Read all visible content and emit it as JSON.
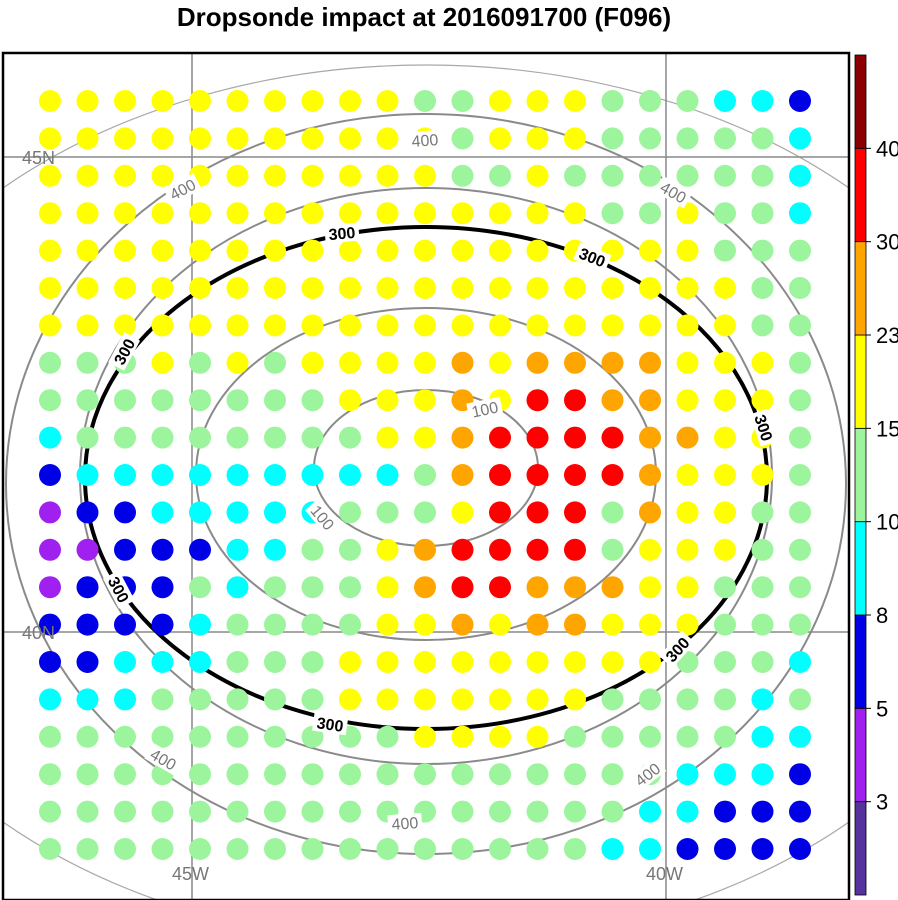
{
  "chart_data": {
    "type": "scatter",
    "title": "Dropsonde impact at 2016091700 (F096)",
    "map": {
      "lat_labels": [
        "45N",
        "40N"
      ],
      "lon_labels": [
        "45W",
        "40W"
      ]
    },
    "grid": {
      "columns": 21,
      "rows": 21,
      "values": [
        [
          15,
          15,
          15,
          15,
          15,
          15,
          15,
          15,
          15,
          15,
          10,
          10,
          15,
          15,
          15,
          10,
          10,
          10,
          8,
          8,
          5
        ],
        [
          15,
          15,
          15,
          15,
          15,
          15,
          15,
          15,
          15,
          15,
          15,
          10,
          15,
          15,
          15,
          10,
          10,
          10,
          10,
          10,
          8
        ],
        [
          15,
          15,
          15,
          15,
          15,
          15,
          15,
          15,
          15,
          15,
          15,
          10,
          10,
          15,
          10,
          10,
          10,
          10,
          10,
          10,
          8
        ],
        [
          15,
          15,
          15,
          15,
          15,
          15,
          15,
          15,
          15,
          15,
          15,
          15,
          15,
          15,
          15,
          10,
          10,
          15,
          10,
          10,
          8
        ],
        [
          15,
          15,
          15,
          15,
          15,
          15,
          15,
          15,
          15,
          15,
          15,
          15,
          15,
          15,
          15,
          15,
          15,
          15,
          10,
          10,
          10
        ],
        [
          15,
          15,
          15,
          15,
          15,
          15,
          15,
          15,
          15,
          15,
          15,
          15,
          15,
          15,
          15,
          15,
          15,
          15,
          15,
          10,
          10
        ],
        [
          15,
          15,
          15,
          15,
          15,
          15,
          15,
          15,
          15,
          15,
          15,
          15,
          15,
          15,
          15,
          15,
          15,
          15,
          15,
          10,
          10
        ],
        [
          10,
          10,
          10,
          15,
          10,
          15,
          10,
          15,
          15,
          15,
          15,
          23,
          15,
          23,
          23,
          23,
          23,
          15,
          15,
          15,
          10
        ],
        [
          10,
          10,
          10,
          10,
          10,
          10,
          10,
          10,
          15,
          15,
          15,
          23,
          15,
          30,
          30,
          23,
          23,
          15,
          15,
          15,
          10
        ],
        [
          8,
          10,
          10,
          10,
          10,
          10,
          10,
          10,
          10,
          15,
          15,
          23,
          30,
          30,
          30,
          30,
          23,
          23,
          15,
          15,
          10
        ],
        [
          5,
          8,
          8,
          8,
          8,
          8,
          8,
          8,
          8,
          8,
          10,
          23,
          30,
          30,
          30,
          30,
          23,
          15,
          15,
          15,
          10
        ],
        [
          3,
          5,
          5,
          8,
          8,
          8,
          8,
          8,
          10,
          10,
          10,
          15,
          30,
          30,
          30,
          10,
          23,
          15,
          15,
          10,
          10
        ],
        [
          3,
          3,
          5,
          5,
          5,
          8,
          8,
          10,
          10,
          15,
          23,
          30,
          30,
          30,
          30,
          10,
          15,
          15,
          15,
          10,
          10
        ],
        [
          3,
          5,
          5,
          5,
          10,
          8,
          10,
          10,
          10,
          15,
          23,
          30,
          30,
          23,
          23,
          23,
          15,
          15,
          10,
          10,
          10
        ],
        [
          5,
          5,
          5,
          5,
          8,
          10,
          10,
          10,
          10,
          15,
          15,
          23,
          15,
          23,
          23,
          15,
          15,
          15,
          10,
          10,
          10
        ],
        [
          5,
          5,
          8,
          8,
          8,
          10,
          10,
          10,
          15,
          15,
          15,
          15,
          15,
          15,
          15,
          15,
          15,
          10,
          10,
          10,
          8
        ],
        [
          8,
          8,
          8,
          10,
          10,
          10,
          10,
          10,
          15,
          15,
          15,
          15,
          15,
          15,
          15,
          10,
          10,
          10,
          10,
          8,
          10
        ],
        [
          10,
          10,
          10,
          10,
          10,
          10,
          10,
          10,
          10,
          10,
          15,
          15,
          15,
          15,
          10,
          10,
          10,
          10,
          10,
          8,
          8
        ],
        [
          10,
          10,
          10,
          10,
          10,
          10,
          10,
          10,
          10,
          10,
          10,
          10,
          10,
          10,
          10,
          10,
          10,
          8,
          8,
          8,
          5
        ],
        [
          10,
          10,
          10,
          10,
          10,
          10,
          10,
          10,
          10,
          10,
          10,
          10,
          10,
          10,
          10,
          10,
          8,
          8,
          5,
          5,
          5
        ],
        [
          10,
          10,
          10,
          10,
          10,
          10,
          10,
          10,
          10,
          10,
          10,
          10,
          10,
          10,
          10,
          8,
          8,
          5,
          5,
          5,
          5
        ]
      ]
    },
    "contours": [
      {
        "level": "100",
        "style": "gray"
      },
      {
        "level": "200",
        "style": "gray"
      },
      {
        "level": "300",
        "style": "black"
      },
      {
        "level": "400",
        "style": "gray"
      }
    ],
    "colorbar": {
      "tick_labels": [
        "3",
        "5",
        "8",
        "10",
        "15",
        "23",
        "30",
        "40"
      ],
      "colors": [
        "#55329e",
        "#a020f0",
        "#0000e6",
        "#00ffff",
        "#9cf59c",
        "#ffff00",
        "#ffa500",
        "#ff0000",
        "#8b0000"
      ],
      "bins": [
        0,
        3,
        5,
        8,
        10,
        15,
        23,
        30,
        40,
        99
      ]
    }
  }
}
